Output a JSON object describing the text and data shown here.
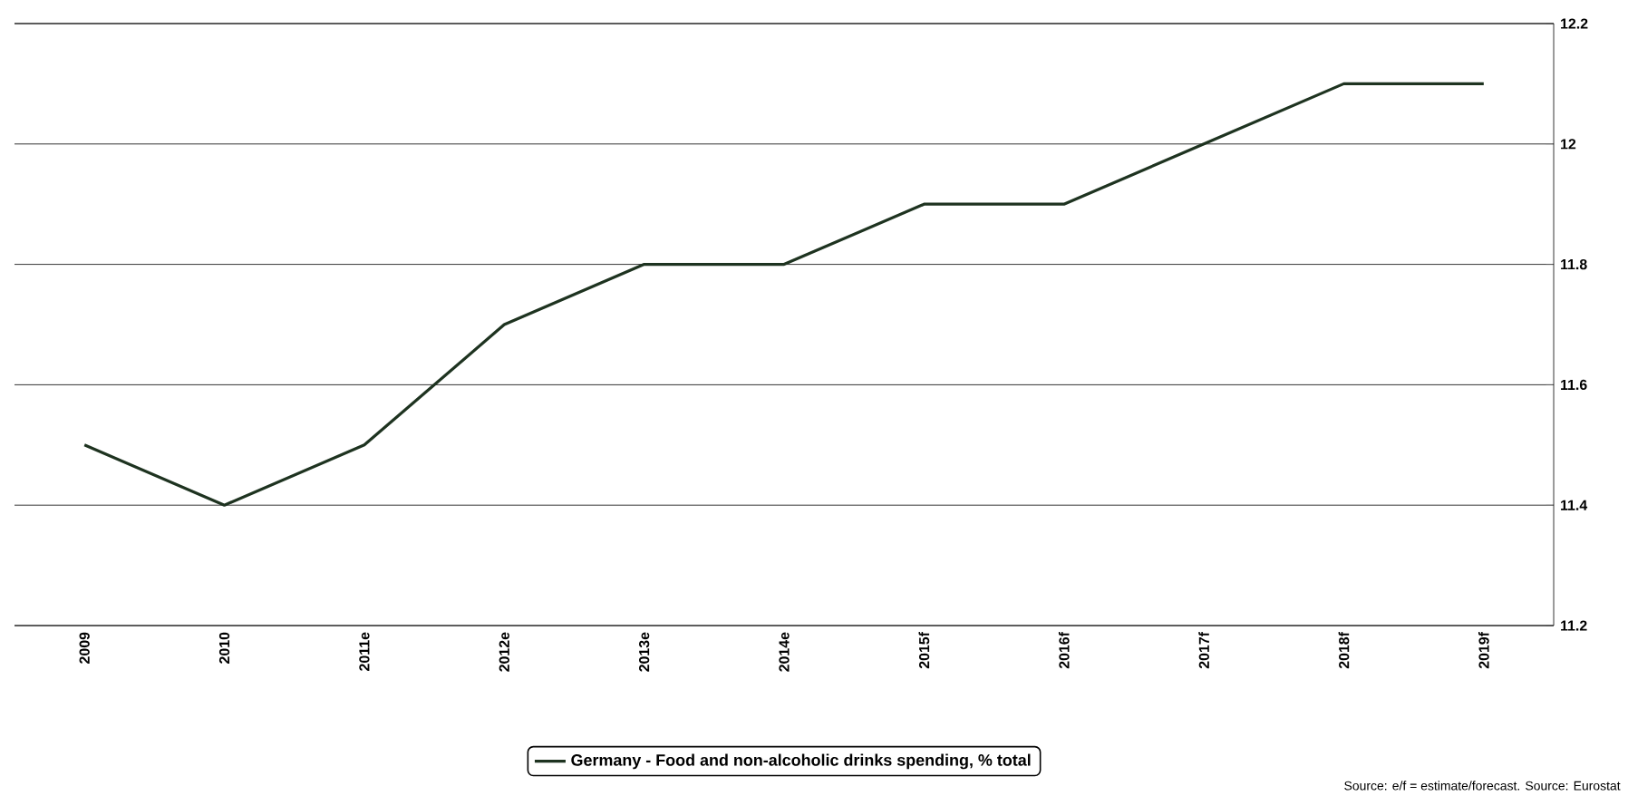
{
  "chart_data": {
    "type": "line",
    "categories": [
      "2009",
      "2010",
      "2011e",
      "2012e",
      "2013e",
      "2014e",
      "2015f",
      "2016f",
      "2017f",
      "2018f",
      "2019f"
    ],
    "series": [
      {
        "name": "Germany - Food and non-alcoholic drinks spending, % total",
        "color": "#1e3320",
        "values": [
          11.5,
          11.4,
          11.5,
          11.7,
          11.8,
          11.8,
          11.9,
          11.9,
          12.0,
          12.1,
          12.1
        ]
      }
    ],
    "ylim": [
      11.2,
      12.2
    ],
    "yticks": [
      11.2,
      11.4,
      11.6,
      11.8,
      12,
      12.2
    ],
    "grid": "y",
    "legend": "bottom",
    "marker": "none",
    "line_style": "solid",
    "annotations": [
      "Source: e/f = estimate/forecast. Source: Eurostat"
    ]
  }
}
